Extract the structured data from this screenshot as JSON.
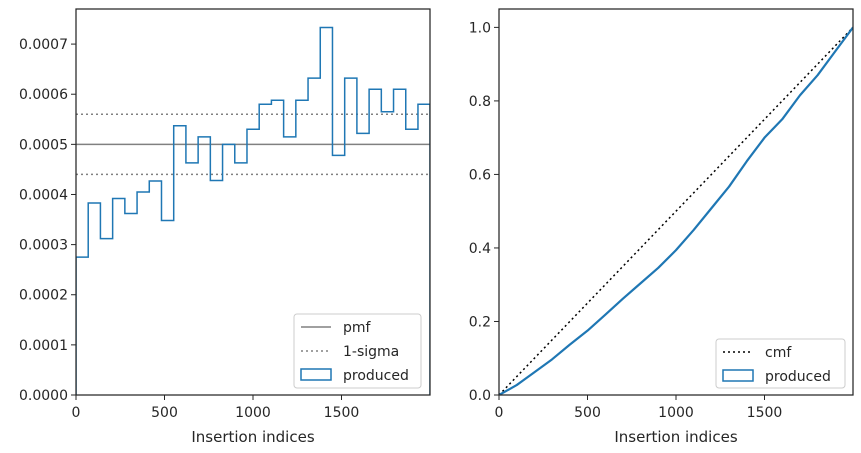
{
  "chart_data": [
    {
      "type": "line",
      "xlabel": "Insertion indices",
      "ylabel": "",
      "xlim": [
        0,
        2000
      ],
      "ylim": [
        0,
        0.00077
      ],
      "x_ticks": [
        0,
        500,
        1000,
        1500
      ],
      "x_tick_labels": [
        "0",
        "500",
        "1000",
        "1500"
      ],
      "y_ticks": [
        0,
        0.0001,
        0.0002,
        0.0003,
        0.0004,
        0.0005,
        0.0006,
        0.0007
      ],
      "y_tick_labels": [
        "0.0000",
        "0.0001",
        "0.0002",
        "0.0003",
        "0.0004",
        "0.0005",
        "0.0006",
        "0.0007"
      ],
      "legend_position": "lower-right",
      "colors": {
        "pmf": "#808080",
        "sigma": "#808080",
        "produced": "#1f77b4"
      },
      "reference_lines": [
        {
          "name": "pmf",
          "style": "solid",
          "y": 0.0005
        },
        {
          "name": "1-sigma",
          "style": "dotted",
          "y": 0.00056
        },
        {
          "name": "1-sigma",
          "style": "dotted",
          "y": 0.00044
        }
      ],
      "legend": [
        {
          "label": "pmf",
          "style": "solid"
        },
        {
          "label": "1-sigma",
          "style": "dotted"
        },
        {
          "label": "produced",
          "style": "patch"
        }
      ],
      "histogram": {
        "name": "produced",
        "bin_edges": [
          0,
          69,
          138,
          207,
          276,
          345,
          414,
          483,
          552,
          621,
          690,
          759,
          828,
          897,
          966,
          1035,
          1104,
          1173,
          1242,
          1311,
          1380,
          1449,
          1518,
          1587,
          1656,
          1725,
          1794,
          1863,
          1932,
          2000
        ],
        "values": [
          0.000275,
          0.000383,
          0.000312,
          0.000392,
          0.000362,
          0.000405,
          0.000427,
          0.000348,
          0.000537,
          0.000463,
          0.000515,
          0.000428,
          0.0005,
          0.000463,
          0.00053,
          0.00058,
          0.000588,
          0.000515,
          0.000588,
          0.000632,
          0.000733,
          0.000478,
          0.000632,
          0.000522,
          0.00061,
          0.000565,
          0.00061,
          0.00053,
          0.00058
        ]
      }
    },
    {
      "type": "line",
      "xlabel": "Insertion indices",
      "ylabel": "",
      "xlim": [
        0,
        2000
      ],
      "ylim": [
        0,
        1.05
      ],
      "x_ticks": [
        0,
        500,
        1000,
        1500
      ],
      "x_tick_labels": [
        "0",
        "500",
        "1000",
        "1500"
      ],
      "y_ticks": [
        0,
        0.2,
        0.4,
        0.6,
        0.8,
        1.0
      ],
      "y_tick_labels": [
        "0.0",
        "0.2",
        "0.4",
        "0.6",
        "0.8",
        "1.0"
      ],
      "legend_position": "lower-right",
      "colors": {
        "cmf": "#000000",
        "produced": "#1f77b4"
      },
      "legend": [
        {
          "label": "cmf",
          "style": "dotted"
        },
        {
          "label": "produced",
          "style": "patch"
        }
      ],
      "series": [
        {
          "name": "cmf",
          "style": "dotted",
          "x": [
            0,
            2000
          ],
          "y": [
            0,
            1.0
          ]
        },
        {
          "name": "produced",
          "style": "solid",
          "x": [
            0,
            100,
            200,
            300,
            400,
            500,
            600,
            700,
            800,
            900,
            1000,
            1100,
            1200,
            1300,
            1400,
            1500,
            1600,
            1700,
            1800,
            1900,
            2000
          ],
          "y": [
            0,
            0.027,
            0.062,
            0.097,
            0.137,
            0.175,
            0.218,
            0.262,
            0.304,
            0.346,
            0.394,
            0.449,
            0.508,
            0.567,
            0.636,
            0.7,
            0.75,
            0.815,
            0.87,
            0.935,
            1.0
          ]
        }
      ]
    }
  ]
}
